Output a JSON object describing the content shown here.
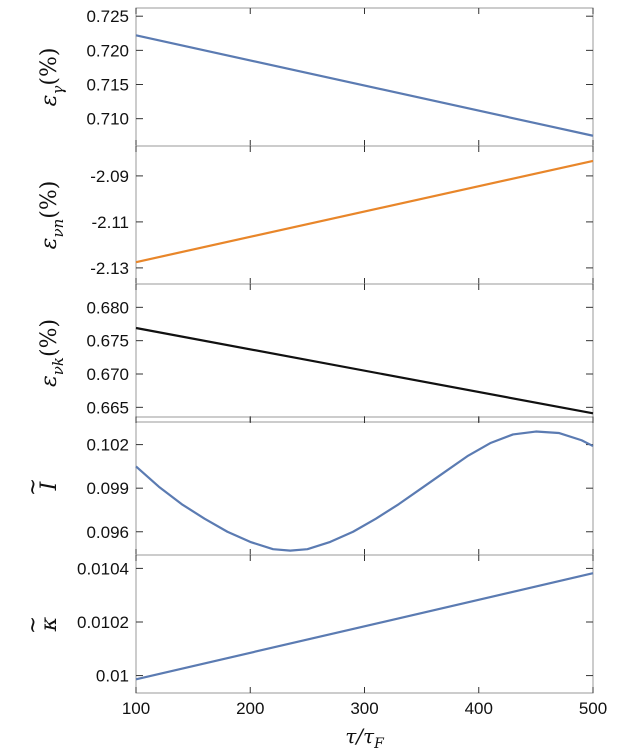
{
  "chart_data": [
    {
      "type": "line",
      "ylabel": "εγ(%)",
      "ylabel_main": "ε",
      "ylabel_sub": "γ",
      "ylabel_unit": "(%)",
      "x": [
        100,
        500
      ],
      "series": [
        {
          "values": [
            0.7222,
            0.7075
          ],
          "color": "#5b7bb2"
        }
      ],
      "xlim": [
        100,
        500
      ],
      "ylim": [
        0.706,
        0.7262
      ],
      "yticks": [
        0.71,
        0.715,
        0.72,
        0.725
      ],
      "ytick_labels": [
        "0.710",
        "0.715",
        "0.720",
        "0.725"
      ]
    },
    {
      "type": "line",
      "ylabel": "εvn(%)",
      "ylabel_main": "ε",
      "ylabel_sub": "νn",
      "ylabel_unit": "(%)",
      "x": [
        100,
        500
      ],
      "series": [
        {
          "values": [
            -2.1275,
            -2.0835
          ],
          "color": "#e8862a"
        }
      ],
      "xlim": [
        100,
        500
      ],
      "ylim": [
        -2.137,
        -2.077
      ],
      "yticks": [
        -2.13,
        -2.11,
        -2.09
      ],
      "ytick_labels": [
        "-2.13",
        "-2.11",
        "-2.09"
      ]
    },
    {
      "type": "line",
      "ylabel": "εvk(%)",
      "ylabel_main": "ε",
      "ylabel_sub": "νk",
      "ylabel_unit": "(%)",
      "x": [
        100,
        500
      ],
      "series": [
        {
          "values": [
            0.6769,
            0.6641
          ],
          "color": "#111111"
        }
      ],
      "xlim": [
        100,
        500
      ],
      "ylim": [
        0.6628,
        0.6835
      ],
      "yticks": [
        0.665,
        0.67,
        0.675,
        0.68
      ],
      "ytick_labels": [
        "0.665",
        "0.670",
        "0.675",
        "0.680"
      ]
    },
    {
      "type": "line",
      "ylabel": "Ĩ",
      "ylabel_main": "I",
      "ylabel_sub": "",
      "ylabel_unit": "",
      "tilde": true,
      "x": [
        100,
        120,
        140,
        160,
        180,
        200,
        220,
        235,
        250,
        270,
        290,
        310,
        330,
        350,
        370,
        390,
        410,
        430,
        450,
        470,
        490,
        500
      ],
      "series": [
        {
          "values": [
            0.1005,
            0.0991,
            0.0979,
            0.0969,
            0.096,
            0.0953,
            0.0948,
            0.0947,
            0.0948,
            0.0953,
            0.096,
            0.0969,
            0.0979,
            0.099,
            0.1001,
            0.1012,
            0.1021,
            0.1027,
            0.1029,
            0.1028,
            0.1023,
            0.1019
          ],
          "color": "#5b7bb2"
        }
      ],
      "xlim": [
        100,
        500
      ],
      "ylim": [
        0.0944,
        0.1039
      ],
      "yticks": [
        0.096,
        0.099,
        0.102
      ],
      "ytick_labels": [
        "0.096",
        "0.099",
        "0.102"
      ]
    },
    {
      "type": "line",
      "ylabel": "κ̃",
      "ylabel_main": "κ",
      "ylabel_sub": "",
      "ylabel_unit": "",
      "tilde": true,
      "x": [
        100,
        500
      ],
      "series": [
        {
          "values": [
            0.009986,
            0.010382
          ],
          "color": "#5b7bb2"
        }
      ],
      "xlim": [
        100,
        500
      ],
      "ylim": [
        0.009935,
        0.01045
      ],
      "yticks": [
        0.01,
        0.0102,
        0.0104
      ],
      "ytick_labels": [
        "0.01",
        "0.0102",
        "0.0104"
      ]
    }
  ],
  "x_axis": {
    "label": "τ/τF",
    "label_main": "τ/τ",
    "label_sub": "F",
    "ticks": [
      100,
      200,
      300,
      400,
      500
    ],
    "tick_labels": [
      "100",
      "200",
      "300",
      "400",
      "500"
    ]
  }
}
